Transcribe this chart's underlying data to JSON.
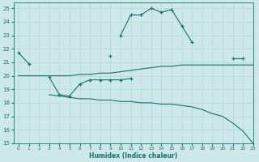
{
  "xlabel": "Humidex (Indice chaleur)",
  "bg_color": "#cce8e8",
  "line_color": "#1a7070",
  "xlim": [
    -0.5,
    23
  ],
  "ylim": [
    15,
    25.4
  ],
  "xticks": [
    0,
    1,
    2,
    3,
    4,
    5,
    6,
    7,
    8,
    9,
    10,
    11,
    12,
    13,
    14,
    15,
    16,
    17,
    18,
    19,
    20,
    21,
    22,
    23
  ],
  "yticks": [
    15,
    16,
    17,
    18,
    19,
    20,
    21,
    22,
    23,
    24,
    25
  ],
  "series": [
    {
      "x": [
        0,
        1,
        10,
        11,
        12,
        13,
        14,
        15,
        16,
        17,
        21,
        22
      ],
      "y": [
        21.7,
        20.9,
        23.0,
        24.5,
        24.5,
        25.0,
        24.7,
        24.9,
        23.7,
        22.5,
        21.3,
        21.3
      ],
      "marker": "+",
      "connect_segments": [
        [
          0,
          1
        ],
        [
          10,
          11,
          12,
          13,
          14,
          15,
          16,
          17
        ],
        [
          21,
          22
        ]
      ]
    },
    {
      "x": [
        3,
        4,
        5,
        6,
        7,
        8,
        9,
        10,
        11
      ],
      "y": [
        19.9,
        18.6,
        18.5,
        19.4,
        19.7,
        19.7,
        19.7,
        19.7,
        19.8
      ],
      "marker": "+",
      "connect_segments": [
        [
          3,
          4,
          5,
          6,
          7,
          8,
          9,
          10,
          11
        ]
      ]
    },
    {
      "x": [
        9
      ],
      "y": [
        21.5
      ],
      "marker": "+",
      "connect_segments": [
        [
          9
        ]
      ]
    },
    {
      "x": [
        0,
        1,
        2,
        3,
        4,
        5,
        6,
        7,
        8,
        9,
        10,
        11,
        12,
        13,
        14,
        15,
        16,
        17,
        18,
        19,
        20,
        21,
        22,
        23
      ],
      "y": [
        20.0,
        20.0,
        20.0,
        20.0,
        20.0,
        20.0,
        20.1,
        20.1,
        20.2,
        20.2,
        20.3,
        20.4,
        20.5,
        20.6,
        20.7,
        20.7,
        20.8,
        20.8,
        20.8,
        20.8,
        20.8,
        20.8,
        20.8,
        20.8
      ],
      "marker": null,
      "connect_segments": null
    },
    {
      "x": [
        3,
        4,
        5,
        6,
        7,
        8,
        9,
        10,
        11,
        12,
        13,
        14,
        15,
        16,
        17,
        18,
        19,
        20,
        21,
        22,
        23
      ],
      "y": [
        18.6,
        18.5,
        18.4,
        18.3,
        18.3,
        18.2,
        18.2,
        18.1,
        18.1,
        18.0,
        18.0,
        17.9,
        17.9,
        17.8,
        17.7,
        17.5,
        17.2,
        17.0,
        16.5,
        15.9,
        15.0
      ],
      "marker": null,
      "connect_segments": null
    }
  ]
}
